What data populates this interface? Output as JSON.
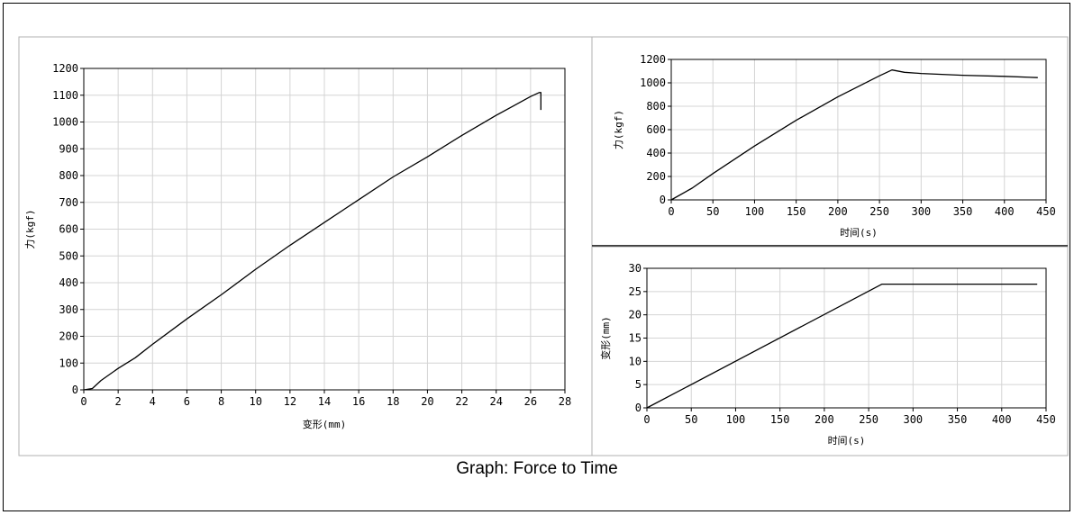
{
  "caption": "Graph: Force to Time",
  "chart_data": [
    {
      "type": "line",
      "xlabel": "变形(mm)",
      "ylabel": "力(kgf)",
      "xlim": [
        0,
        28
      ],
      "ylim": [
        0,
        1200
      ],
      "x_ticks": [
        0,
        2,
        4,
        6,
        8,
        10,
        12,
        14,
        16,
        18,
        20,
        22,
        24,
        26,
        28
      ],
      "y_ticks": [
        0,
        100,
        200,
        300,
        400,
        500,
        600,
        700,
        800,
        900,
        1000,
        1100,
        1200
      ],
      "grid": true,
      "series": [
        {
          "x": [
            0,
            0.5,
            1,
            2,
            3,
            4,
            6,
            8,
            10,
            12,
            14,
            16,
            18,
            20,
            22,
            24,
            25,
            26,
            26.5,
            26.6,
            26.6
          ],
          "y": [
            0,
            5,
            35,
            80,
            120,
            170,
            265,
            355,
            450,
            540,
            625,
            710,
            795,
            870,
            950,
            1025,
            1060,
            1095,
            1110,
            1110,
            1045
          ]
        }
      ]
    },
    {
      "type": "line",
      "xlabel": "时间(s)",
      "ylabel": "力(kgf)",
      "xlim": [
        0,
        450
      ],
      "ylim": [
        0,
        1200
      ],
      "x_ticks": [
        0,
        50,
        100,
        150,
        200,
        250,
        300,
        350,
        400,
        450
      ],
      "y_ticks": [
        0,
        200,
        400,
        600,
        800,
        1000,
        1200
      ],
      "grid": true,
      "series": [
        {
          "x": [
            0,
            25,
            50,
            100,
            150,
            200,
            250,
            265,
            280,
            300,
            350,
            400,
            440
          ],
          "y": [
            0,
            100,
            225,
            460,
            680,
            880,
            1060,
            1110,
            1090,
            1080,
            1065,
            1055,
            1045
          ]
        }
      ]
    },
    {
      "type": "line",
      "xlabel": "时间(s)",
      "ylabel": "变形(mm)",
      "xlim": [
        0,
        450
      ],
      "ylim": [
        0,
        30
      ],
      "x_ticks": [
        0,
        50,
        100,
        150,
        200,
        250,
        300,
        350,
        400,
        450
      ],
      "y_ticks": [
        0,
        5,
        10,
        15,
        20,
        25,
        30
      ],
      "grid": true,
      "series": [
        {
          "x": [
            0,
            265,
            440
          ],
          "y": [
            0,
            26.6,
            26.6
          ]
        }
      ]
    }
  ]
}
